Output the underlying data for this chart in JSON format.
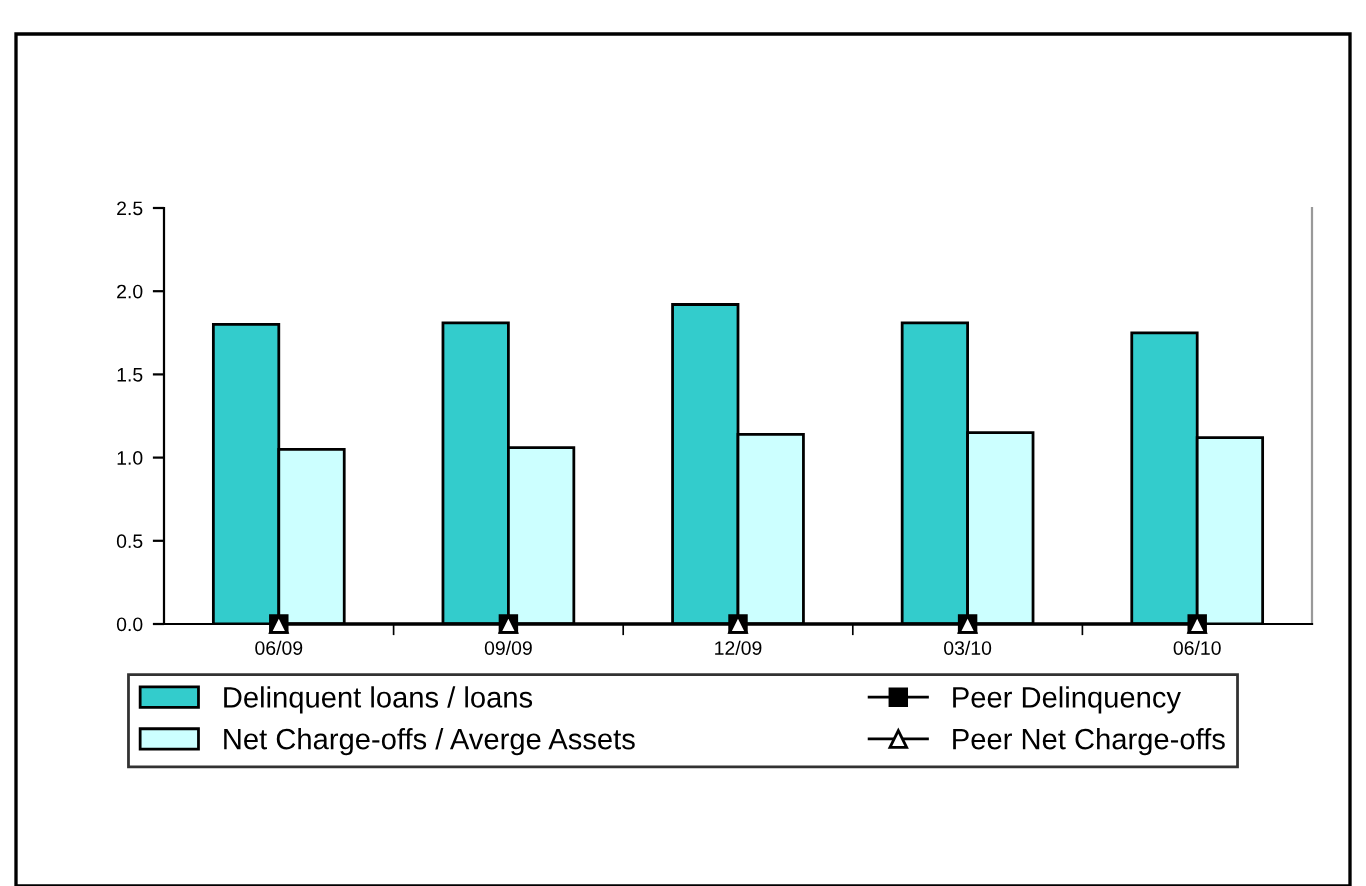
{
  "chart_data": {
    "type": "bar",
    "categories": [
      "06/09",
      "09/09",
      "12/09",
      "03/10",
      "06/10"
    ],
    "series": [
      {
        "name": "Delinquent loans / loans",
        "color": "#33cccc",
        "values": [
          1.8,
          1.81,
          1.92,
          1.81,
          1.75
        ]
      },
      {
        "name": "Net Charge-offs / Averge Assets",
        "color": "#ccffff",
        "values": [
          1.05,
          1.06,
          1.14,
          1.15,
          1.12
        ]
      },
      {
        "name": "Peer Delinquency",
        "type": "line",
        "color": "#000000",
        "marker": "square",
        "values": [
          0,
          0,
          0,
          0,
          0
        ]
      },
      {
        "name": "Peer Net Charge-offs",
        "type": "line",
        "color": "#000000",
        "marker": "triangle",
        "values": [
          0,
          0,
          0,
          0,
          0
        ]
      }
    ],
    "ylim": [
      0,
      2.5
    ],
    "yticks": [
      {
        "value": 0,
        "label": "0.0"
      },
      {
        "value": 0.5,
        "label": "0.5"
      },
      {
        "value": 1.0,
        "label": "1.0"
      },
      {
        "value": 1.5,
        "label": "1.5"
      },
      {
        "value": 2.0,
        "label": "2.0"
      },
      {
        "value": 2.5,
        "label": "2.5"
      }
    ],
    "grid": false,
    "legend": "bottom"
  }
}
